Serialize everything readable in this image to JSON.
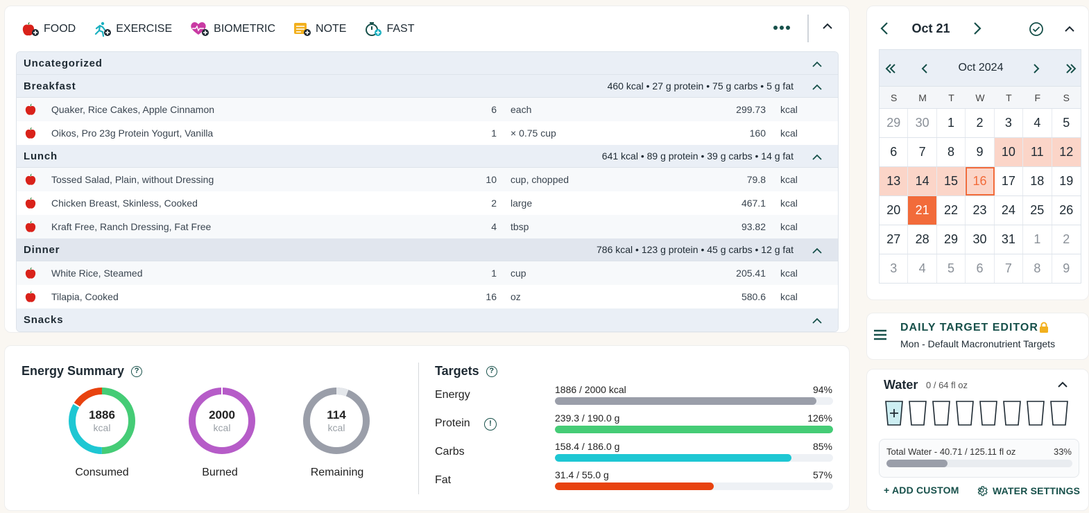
{
  "toolbar": {
    "food": "FOOD",
    "exercise": "EXERCISE",
    "biometric": "BIOMETRIC",
    "note": "NOTE",
    "fast": "FAST"
  },
  "diary": {
    "groups": [
      {
        "name": "Uncategorized",
        "summary": "",
        "items": []
      },
      {
        "name": "Breakfast",
        "summary": "460 kcal • 27 g protein • 75 g carbs • 5 g fat",
        "items": [
          {
            "name": "Quaker, Rice Cakes, Apple Cinnamon",
            "qty": "6",
            "unit": "each",
            "value": "299.73",
            "u": "kcal"
          },
          {
            "name": "Oikos, Pro 23g Protein Yogurt, Vanilla",
            "qty": "1",
            "unit": "× 0.75 cup",
            "value": "160",
            "u": "kcal"
          }
        ]
      },
      {
        "name": "Lunch",
        "summary": "641 kcal • 89 g protein • 39 g carbs • 14 g fat",
        "items": [
          {
            "name": "Tossed Salad, Plain, without Dressing",
            "qty": "10",
            "unit": "cup, chopped",
            "value": "79.8",
            "u": "kcal"
          },
          {
            "name": "Chicken Breast, Skinless, Cooked",
            "qty": "2",
            "unit": "large",
            "value": "467.1",
            "u": "kcal"
          },
          {
            "name": "Kraft Free, Ranch Dressing, Fat Free",
            "qty": "4",
            "unit": "tbsp",
            "value": "93.82",
            "u": "kcal"
          }
        ]
      },
      {
        "name": "Dinner",
        "summary": "786 kcal • 123 g protein • 45 g carbs • 12 g fat",
        "items": [
          {
            "name": "White Rice, Steamed",
            "qty": "1",
            "unit": "cup",
            "value": "205.41",
            "u": "kcal"
          },
          {
            "name": "Tilapia, Cooked",
            "qty": "16",
            "unit": "oz",
            "value": "580.6",
            "u": "kcal"
          }
        ]
      },
      {
        "name": "Snacks",
        "summary": "",
        "items": []
      }
    ]
  },
  "energy": {
    "title": "Energy Summary",
    "consumed": {
      "value": "1886",
      "unit": "kcal",
      "label": "Consumed"
    },
    "burned": {
      "value": "2000",
      "unit": "kcal",
      "label": "Burned"
    },
    "remaining": {
      "value": "114",
      "unit": "kcal",
      "label": "Remaining"
    }
  },
  "targets": {
    "title": "Targets",
    "rows": [
      {
        "name": "Energy",
        "text": "1886 / 2000 kcal",
        "pct": "94%",
        "fill": 0.94,
        "color": "#9a9ea9"
      },
      {
        "name": "Protein",
        "text": "239.3 / 190.0 g",
        "pct": "126%",
        "fill": 1.0,
        "color": "#45cc76"
      },
      {
        "name": "Carbs",
        "text": "158.4 / 186.0 g",
        "pct": "85%",
        "fill": 0.85,
        "color": "#1ec7d3"
      },
      {
        "name": "Fat",
        "text": "31.4 / 55.0 g",
        "pct": "57%",
        "fill": 0.57,
        "color": "#e8420f"
      }
    ]
  },
  "calendar": {
    "date": "Oct 21",
    "month": "Oct 2024",
    "dows": [
      "S",
      "M",
      "T",
      "W",
      "T",
      "F",
      "S"
    ],
    "weeks": [
      [
        "29",
        "30",
        "1",
        "2",
        "3",
        "4",
        "5"
      ],
      [
        "6",
        "7",
        "8",
        "9",
        "10",
        "11",
        "12"
      ],
      [
        "13",
        "14",
        "15",
        "16",
        "17",
        "18",
        "19"
      ],
      [
        "20",
        "21",
        "22",
        "23",
        "24",
        "25",
        "26"
      ],
      [
        "27",
        "28",
        "29",
        "30",
        "31",
        "1",
        "2"
      ],
      [
        "3",
        "4",
        "5",
        "6",
        "7",
        "8",
        "9"
      ]
    ]
  },
  "target_editor": {
    "title": "DAILY TARGET EDITOR",
    "subtitle": "Mon - Default Macronutrient Targets"
  },
  "water": {
    "title": "Water",
    "amount": "0 / 64 fl oz",
    "total": "Total Water - 40.71 / 125.11 fl oz",
    "total_pct": "33%",
    "total_fill": 0.33,
    "add_custom": "+ ADD CUSTOM",
    "settings": "WATER SETTINGS"
  },
  "colors": {
    "accent": "#f26b3a",
    "teal": "#17504a"
  }
}
